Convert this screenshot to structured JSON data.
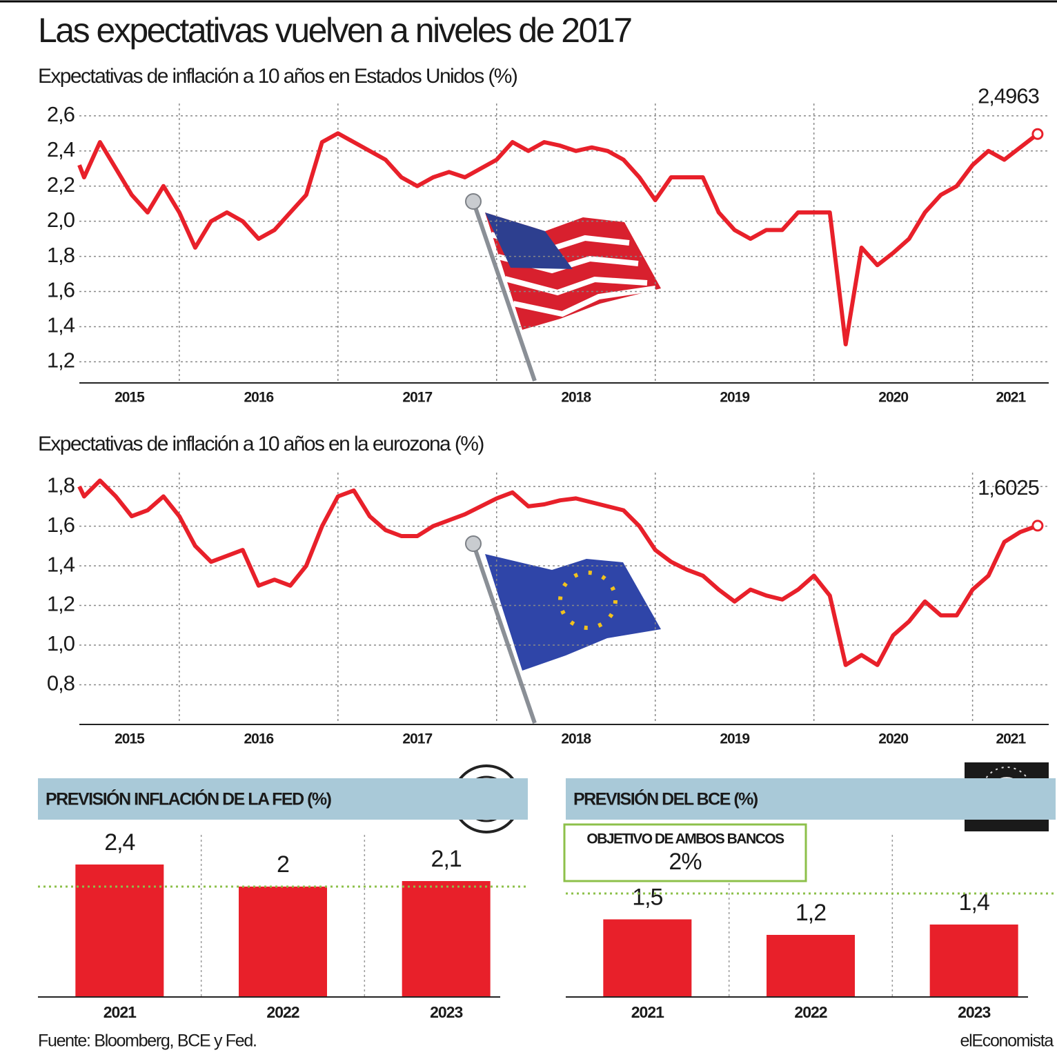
{
  "title": "Las expectativas vuelven a niveles de 2017",
  "source": "Fuente: Bloomberg, BCE y Fed.",
  "brand": "elEconomista",
  "chart_data": [
    {
      "type": "line",
      "subtitle": "Expectativas de inflación a 10 años en Estados Unidos (%)",
      "x": [
        2015.37,
        2015.4,
        2015.5,
        2015.6,
        2015.7,
        2015.8,
        2015.9,
        2016.0,
        2016.1,
        2016.2,
        2016.3,
        2016.4,
        2016.5,
        2016.6,
        2016.7,
        2016.8,
        2016.9,
        2017.0,
        2017.1,
        2017.2,
        2017.3,
        2017.4,
        2017.5,
        2017.6,
        2017.7,
        2017.8,
        2017.9,
        2018.0,
        2018.1,
        2018.2,
        2018.3,
        2018.4,
        2018.5,
        2018.6,
        2018.7,
        2018.8,
        2018.9,
        2019.0,
        2019.1,
        2019.2,
        2019.3,
        2019.4,
        2019.5,
        2019.6,
        2019.7,
        2019.8,
        2019.9,
        2020.0,
        2020.1,
        2020.2,
        2020.3,
        2020.4,
        2020.5,
        2020.6,
        2020.7,
        2020.8,
        2020.9,
        2021.0,
        2021.1,
        2021.2,
        2021.3,
        2021.41
      ],
      "series": [
        {
          "color": "#e8202a",
          "values": [
            2.32,
            2.25,
            2.45,
            2.3,
            2.15,
            2.05,
            2.2,
            2.05,
            1.85,
            2.0,
            2.05,
            2.0,
            1.9,
            1.95,
            2.05,
            2.15,
            2.45,
            2.5,
            2.45,
            2.4,
            2.35,
            2.25,
            2.2,
            2.25,
            2.28,
            2.25,
            2.3,
            2.35,
            2.45,
            2.4,
            2.45,
            2.43,
            2.4,
            2.42,
            2.4,
            2.35,
            2.25,
            2.12,
            2.25,
            2.25,
            2.25,
            2.05,
            1.95,
            1.9,
            1.95,
            1.95,
            2.05,
            2.05,
            2.05,
            1.3,
            1.85,
            1.75,
            1.82,
            1.9,
            2.05,
            2.15,
            2.2,
            2.32,
            2.4,
            2.35,
            2.42,
            2.4963
          ],
          "value_labels": [
            null,
            null,
            null,
            null,
            null,
            null,
            null,
            null,
            null,
            null,
            null,
            null,
            null,
            null,
            null,
            null,
            null,
            null,
            null,
            null,
            null,
            null,
            null,
            null,
            null,
            null,
            null,
            null,
            null,
            null,
            null,
            null,
            null,
            null,
            null,
            null,
            null,
            null,
            null,
            null,
            null,
            null,
            null,
            null,
            null,
            null,
            null,
            null,
            null,
            null,
            null,
            null,
            null,
            null,
            null,
            null,
            null,
            null,
            null,
            null,
            null,
            "2,4963"
          ]
        }
      ],
      "xlim": [
        2015.37,
        2021.48
      ],
      "xticks": [
        2015,
        2016,
        2017,
        2018,
        2019,
        2020,
        2021
      ],
      "ylim": [
        1.08,
        2.67
      ],
      "yticks": [
        {
          "value": 1.2,
          "label": "1,2"
        },
        {
          "value": 1.4,
          "label": "1,4"
        },
        {
          "value": 1.6,
          "label": "1,6"
        },
        {
          "value": 1.8,
          "label": "1,8"
        },
        {
          "value": 2.0,
          "label": "2,0"
        },
        {
          "value": 2.2,
          "label": "2,2"
        },
        {
          "value": 2.4,
          "label": "2,4"
        },
        {
          "value": 2.6,
          "label": "2,6"
        }
      ],
      "grid": true
    },
    {
      "type": "line",
      "subtitle": "Expectativas de inflación a 10 años en la eurozona (%)",
      "x": [
        2015.37,
        2015.4,
        2015.5,
        2015.6,
        2015.7,
        2015.8,
        2015.9,
        2016.0,
        2016.1,
        2016.2,
        2016.3,
        2016.4,
        2016.5,
        2016.6,
        2016.7,
        2016.8,
        2016.9,
        2017.0,
        2017.1,
        2017.2,
        2017.3,
        2017.4,
        2017.5,
        2017.6,
        2017.7,
        2017.8,
        2017.9,
        2018.0,
        2018.1,
        2018.2,
        2018.3,
        2018.4,
        2018.5,
        2018.6,
        2018.7,
        2018.8,
        2018.9,
        2019.0,
        2019.1,
        2019.2,
        2019.3,
        2019.4,
        2019.5,
        2019.6,
        2019.7,
        2019.8,
        2019.9,
        2020.0,
        2020.1,
        2020.2,
        2020.3,
        2020.4,
        2020.5,
        2020.6,
        2020.7,
        2020.8,
        2020.9,
        2021.0,
        2021.1,
        2021.2,
        2021.3,
        2021.41
      ],
      "series": [
        {
          "color": "#e8202a",
          "values": [
            1.8,
            1.75,
            1.83,
            1.75,
            1.65,
            1.68,
            1.75,
            1.65,
            1.5,
            1.42,
            1.45,
            1.48,
            1.3,
            1.33,
            1.3,
            1.4,
            1.6,
            1.75,
            1.78,
            1.65,
            1.58,
            1.55,
            1.55,
            1.6,
            1.63,
            1.66,
            1.7,
            1.74,
            1.77,
            1.7,
            1.71,
            1.73,
            1.74,
            1.72,
            1.7,
            1.68,
            1.6,
            1.48,
            1.42,
            1.38,
            1.35,
            1.28,
            1.22,
            1.28,
            1.25,
            1.23,
            1.28,
            1.35,
            1.25,
            0.9,
            0.95,
            0.9,
            1.05,
            1.12,
            1.22,
            1.15,
            1.15,
            1.28,
            1.35,
            1.52,
            1.57,
            1.6025
          ],
          "value_labels": [
            null,
            null,
            null,
            null,
            null,
            null,
            null,
            null,
            null,
            null,
            null,
            null,
            null,
            null,
            null,
            null,
            null,
            null,
            null,
            null,
            null,
            null,
            null,
            null,
            null,
            null,
            null,
            null,
            null,
            null,
            null,
            null,
            null,
            null,
            null,
            null,
            null,
            null,
            null,
            null,
            null,
            null,
            null,
            null,
            null,
            null,
            null,
            null,
            null,
            null,
            null,
            null,
            null,
            null,
            null,
            null,
            null,
            null,
            null,
            null,
            null,
            "1,6025"
          ]
        }
      ],
      "xlim": [
        2015.37,
        2021.48
      ],
      "xticks": [
        2015,
        2016,
        2017,
        2018,
        2019,
        2020,
        2021
      ],
      "ylim": [
        0.6,
        1.87
      ],
      "yticks": [
        {
          "value": 0.8,
          "label": "0,8"
        },
        {
          "value": 1.0,
          "label": "1,0"
        },
        {
          "value": 1.2,
          "label": "1,2"
        },
        {
          "value": 1.4,
          "label": "1,4"
        },
        {
          "value": 1.6,
          "label": "1,6"
        },
        {
          "value": 1.8,
          "label": "1,8"
        }
      ],
      "grid": true
    },
    {
      "type": "bar",
      "title": "PREVISIÓN INFLACIÓN DE LA FED (%)",
      "categories": [
        "2021",
        "2022",
        "2023"
      ],
      "values": [
        2.4,
        2,
        2.1
      ],
      "value_labels": [
        "2,4",
        "2",
        "2,1"
      ],
      "color": "#e8202a",
      "ylim": [
        0,
        3
      ],
      "reference": {
        "value": 2,
        "color": "#8dc04a"
      }
    },
    {
      "type": "bar",
      "title": "PREVISIÓN DEL BCE (%)",
      "categories": [
        "2021",
        "2022",
        "2023"
      ],
      "values": [
        1.5,
        1.2,
        1.4
      ],
      "value_labels": [
        "1,5",
        "1,2",
        "1,4"
      ],
      "color": "#e8202a",
      "ylim": [
        0,
        3.2
      ],
      "reference": {
        "value": 2,
        "label": "2%",
        "title": "OBJETIVO DE AMBOS BANCOS",
        "color": "#8dc04a"
      }
    }
  ]
}
